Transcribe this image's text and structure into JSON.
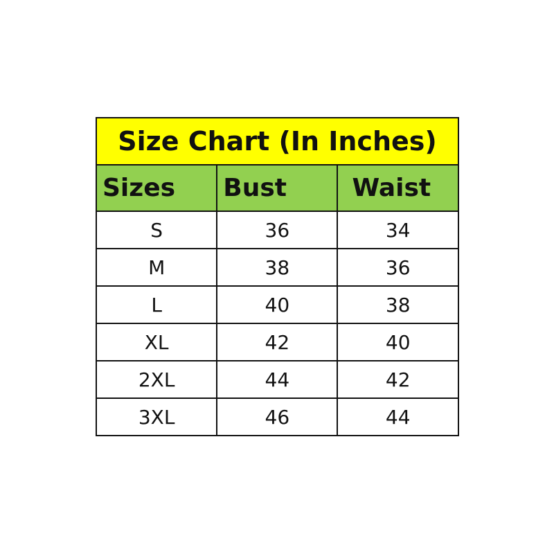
{
  "title": "Size Chart (In Inches)",
  "headers": [
    "Sizes",
    "Bust",
    "Waist"
  ],
  "rows": [
    [
      "S",
      "36",
      "34"
    ],
    [
      "M",
      "38",
      "36"
    ],
    [
      "L",
      "40",
      "38"
    ],
    [
      "XL",
      "42",
      "40"
    ],
    [
      "2XL",
      "44",
      "42"
    ],
    [
      "3XL",
      "46",
      "44"
    ]
  ],
  "colors": {
    "title_bg": "#ffff00",
    "header_bg": "#92d050",
    "border": "#111111"
  }
}
